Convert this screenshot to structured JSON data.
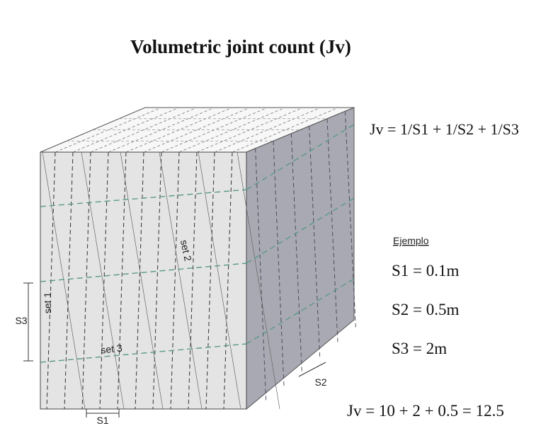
{
  "title": "Volumetric joint count  (Jv)",
  "formula": "Jv = 1/S1 + 1/S2 + 1/S3",
  "example": {
    "heading": "Ejemplo",
    "lines": [
      "S1 = 0.1m",
      "S2 = 0.5m",
      "S3 = 2m"
    ],
    "result": "Jv = 10 + 2 + 0.5 = 12.5"
  },
  "labels": {
    "set1": "set 1",
    "set2": "set 2",
    "set3": "set 3",
    "s1": "S1",
    "s2": "S2",
    "s3": "S3"
  }
}
